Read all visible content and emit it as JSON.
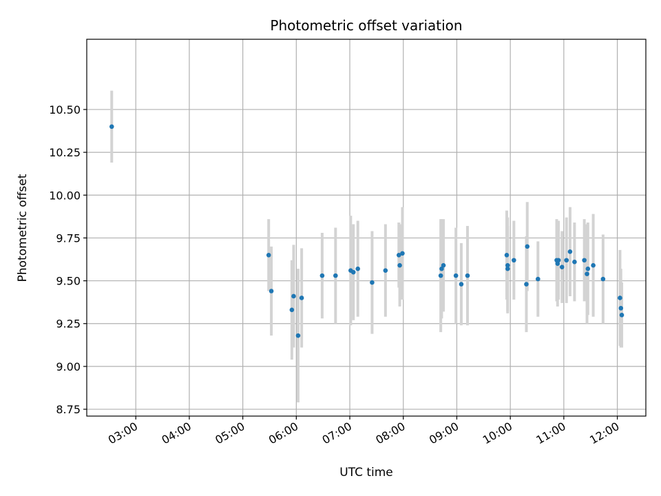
{
  "chart_data": {
    "type": "scatter",
    "title": "Photometric offset variation",
    "xlabel": "UTC time",
    "ylabel": "Photometric offset",
    "x_ticks": [
      "03:00",
      "04:00",
      "05:00",
      "06:00",
      "07:00",
      "08:00",
      "09:00",
      "10:00",
      "11:00",
      "12:00"
    ],
    "y_ticks": [
      "8.75",
      "9.00",
      "9.25",
      "9.50",
      "9.75",
      "10.00",
      "10.25",
      "10.50"
    ],
    "xlim": [
      "02:05",
      "12:32"
    ],
    "ylim": [
      8.71,
      10.91
    ],
    "grid": true,
    "colors": {
      "point": "#1f77b4",
      "errorbar": "#d3d3d3",
      "grid": "#b0b0b0"
    },
    "series": [
      {
        "x": [
          "02:33",
          "05:29",
          "05:32",
          "05:55",
          "05:57",
          "06:02",
          "06:06",
          "06:29",
          "06:44",
          "07:01",
          "07:04",
          "07:09",
          "07:25",
          "07:40",
          "07:55",
          "07:56",
          "07:59",
          "08:42",
          "08:43",
          "08:45",
          "08:59",
          "09:05",
          "09:12",
          "09:56",
          "09:57",
          "09:57",
          "10:04",
          "10:18",
          "10:19",
          "10:31",
          "10:52",
          "10:53",
          "10:54",
          "10:58",
          "11:03",
          "11:07",
          "11:12",
          "11:23",
          "11:26",
          "11:27",
          "11:33",
          "11:44",
          "12:03",
          "12:04",
          "12:05"
        ],
        "y": [
          10.4,
          9.65,
          9.44,
          9.33,
          9.41,
          9.18,
          9.4,
          9.53,
          9.53,
          9.56,
          9.55,
          9.57,
          9.49,
          9.56,
          9.65,
          9.59,
          9.66,
          9.53,
          9.57,
          9.59,
          9.53,
          9.48,
          9.53,
          9.65,
          9.59,
          9.57,
          9.62,
          9.48,
          9.7,
          9.51,
          9.62,
          9.6,
          9.62,
          9.58,
          9.62,
          9.67,
          9.61,
          9.62,
          9.54,
          9.57,
          9.59,
          9.51,
          9.4,
          9.34,
          9.3
        ],
        "err": [
          0.21,
          0.21,
          0.26,
          0.29,
          0.3,
          0.39,
          0.29,
          0.25,
          0.28,
          0.32,
          0.28,
          0.28,
          0.3,
          0.27,
          0.19,
          0.24,
          0.27,
          0.33,
          0.29,
          0.27,
          0.28,
          0.24,
          0.29,
          0.26,
          0.28,
          0.25,
          0.23,
          0.28,
          0.26,
          0.22,
          0.24,
          0.25,
          0.23,
          0.21,
          0.25,
          0.26,
          0.23,
          0.24,
          0.29,
          0.27,
          0.3,
          0.26,
          0.28,
          0.23,
          0.19
        ]
      }
    ]
  }
}
